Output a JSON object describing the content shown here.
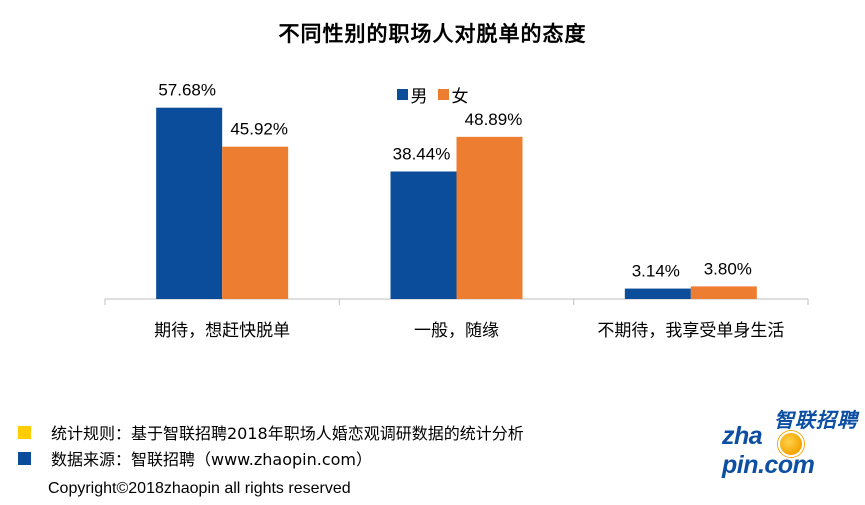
{
  "chart_data": {
    "type": "bar",
    "title": "不同性别的职场人对脱单的态度",
    "categories": [
      "期待，想赶快脱单",
      "一般，随缘",
      "不期待，我享受单身生活"
    ],
    "series": [
      {
        "name": "男",
        "values": [
          57.68,
          38.44,
          3.14
        ],
        "labels": [
          "57.68%",
          "38.44%",
          "3.14%"
        ],
        "color": "#0b4c9b"
      },
      {
        "name": "女",
        "values": [
          45.92,
          48.89,
          3.8
        ],
        "labels": [
          "45.92%",
          "48.89%",
          "3.80%"
        ],
        "color": "#ed7d31"
      }
    ],
    "ylim": [
      0,
      60
    ],
    "legend_position": "top-center",
    "grid": false
  },
  "footer": {
    "rule_text": "统计规则：基于智联招聘2018年职场人婚恋观调研数据的统计分析",
    "rule_color": "#ffcc00",
    "source_text": "数据来源：智联招聘（www.zhaopin.com）",
    "source_color": "#0b4c9b",
    "copyright": "Copyright©2018zhaopin all rights reserved"
  },
  "logo": {
    "cn": "智联招聘",
    "en_left": "zha",
    "en_right": "pin.com"
  }
}
